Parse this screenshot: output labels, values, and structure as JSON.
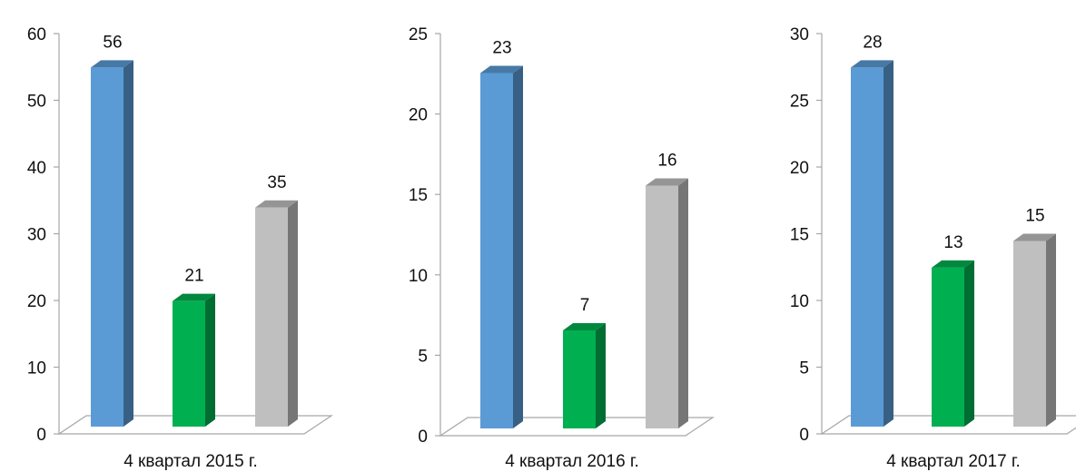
{
  "chart_data": [
    {
      "type": "bar",
      "categories": [
        "4 квартал 2015 г."
      ],
      "series": [
        {
          "values": [
            56
          ],
          "color": "#5b9bd5"
        },
        {
          "values": [
            21
          ],
          "color": "#00b050"
        },
        {
          "values": [
            35
          ],
          "color": "#bfbfbf"
        }
      ],
      "yticks": [
        0,
        10,
        20,
        30,
        40,
        50,
        60
      ],
      "ylim": [
        0,
        60
      ],
      "xlabel": "",
      "ylabel": "",
      "title": "",
      "grid": false,
      "legend": "none",
      "style": "3d"
    },
    {
      "type": "bar",
      "categories": [
        "4 квартал 2016 г."
      ],
      "series": [
        {
          "values": [
            23
          ],
          "color": "#5b9bd5"
        },
        {
          "values": [
            7
          ],
          "color": "#00b050"
        },
        {
          "values": [
            16
          ],
          "color": "#bfbfbf"
        }
      ],
      "yticks": [
        0,
        5,
        10,
        15,
        20,
        25
      ],
      "ylim": [
        0,
        25
      ],
      "xlabel": "",
      "ylabel": "",
      "title": "",
      "grid": false,
      "legend": "none",
      "style": "3d"
    },
    {
      "type": "bar",
      "categories": [
        "4 квартал 2017 г."
      ],
      "series": [
        {
          "values": [
            28
          ],
          "color": "#5b9bd5"
        },
        {
          "values": [
            13
          ],
          "color": "#00b050"
        },
        {
          "values": [
            15
          ],
          "color": "#bfbfbf"
        }
      ],
      "yticks": [
        0,
        5,
        10,
        15,
        20,
        25,
        30
      ],
      "ylim": [
        0,
        30
      ],
      "xlabel": "",
      "ylabel": "",
      "title": "",
      "grid": false,
      "legend": "none",
      "style": "3d"
    }
  ]
}
